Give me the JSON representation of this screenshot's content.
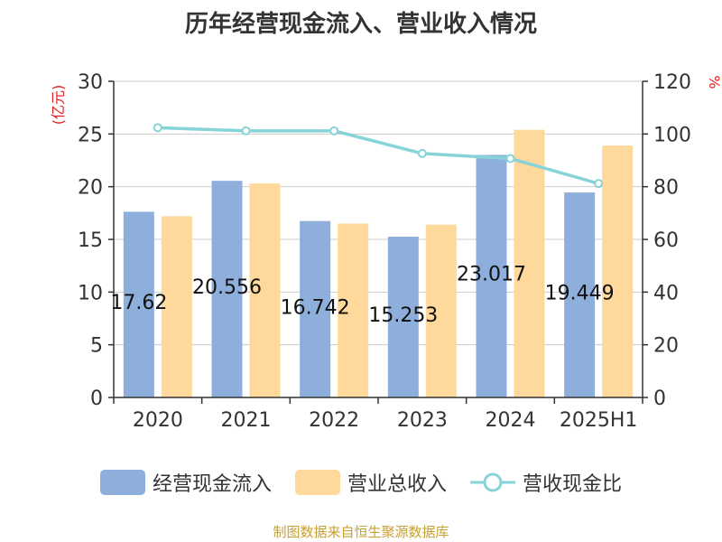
{
  "title": "历年经营现金流入、营业收入情况",
  "source_note": "制图数据来自恒生聚源数据库",
  "colors": {
    "cash_bar": "#8eaedb",
    "revenue_bar": "#fed99b",
    "ratio_line": "#86d4d8",
    "axis_unit": "#e02020",
    "source": "#c8a032"
  },
  "chart_data": {
    "type": "bar",
    "title": "历年经营现金流入、营业收入情况",
    "categories": [
      "2020",
      "2021",
      "2022",
      "2023",
      "2024",
      "2025H1"
    ],
    "y_left": {
      "label": "(亿元)",
      "min": 0,
      "max": 30,
      "ticks": [
        0,
        5,
        10,
        15,
        20,
        25,
        30
      ]
    },
    "y_right": {
      "label": "%",
      "min": 0,
      "max": 120,
      "ticks": [
        0,
        20,
        40,
        60,
        80,
        100,
        120
      ]
    },
    "grid": true,
    "legend_position": "bottom",
    "series": [
      {
        "name": "经营现金流入",
        "type": "bar",
        "axis": "left",
        "values": [
          17.62,
          20.556,
          16.742,
          15.253,
          23.017,
          19.449
        ],
        "data_labels": [
          "17.62",
          "20.556",
          "16.742",
          "15.253",
          "23.017",
          "19.449"
        ]
      },
      {
        "name": "营业总收入",
        "type": "bar",
        "axis": "left",
        "values": [
          17.2,
          20.3,
          16.5,
          16.4,
          25.4,
          23.9
        ]
      },
      {
        "name": "营收现金比",
        "type": "line",
        "axis": "right",
        "values": [
          102.4,
          101.2,
          101.2,
          92.6,
          90.7,
          81.2
        ]
      }
    ]
  }
}
